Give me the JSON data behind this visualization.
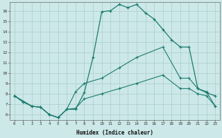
{
  "xlabel": "Humidex (Indice chaleur)",
  "background_color": "#cce8e8",
  "grid_color": "#aacccc",
  "line_color": "#1a7a6e",
  "xlim": [
    -0.5,
    23.5
  ],
  "ylim": [
    5.5,
    16.8
  ],
  "xticks": [
    0,
    1,
    2,
    3,
    4,
    5,
    6,
    7,
    8,
    9,
    10,
    11,
    12,
    13,
    14,
    15,
    16,
    17,
    18,
    19,
    20,
    21,
    22,
    23
  ],
  "yticks": [
    6,
    7,
    8,
    9,
    10,
    11,
    12,
    13,
    14,
    15,
    16
  ],
  "line1_x": [
    0,
    1,
    2,
    3,
    4,
    5,
    6,
    7,
    8,
    9,
    10,
    11,
    12,
    13,
    14,
    15,
    16,
    17,
    18,
    19,
    20,
    21,
    22,
    23
  ],
  "line1_y": [
    7.8,
    7.2,
    6.8,
    6.7,
    6.0,
    5.7,
    6.5,
    6.5,
    8.1,
    11.5,
    15.9,
    16.0,
    16.6,
    16.3,
    16.6,
    15.8,
    15.2,
    14.2,
    13.2,
    12.5,
    12.5,
    8.5,
    8.1,
    7.8
  ],
  "line2_x": [
    0,
    2,
    3,
    4,
    5,
    6,
    7,
    8,
    10,
    12,
    14,
    17,
    19,
    20,
    21,
    22,
    23
  ],
  "line2_y": [
    7.8,
    6.8,
    6.7,
    6.0,
    5.7,
    6.5,
    8.2,
    9.0,
    9.5,
    10.5,
    11.5,
    12.5,
    9.5,
    9.5,
    8.5,
    8.2,
    6.8
  ],
  "line3_x": [
    0,
    2,
    3,
    4,
    5,
    6,
    7,
    8,
    10,
    12,
    14,
    17,
    19,
    20,
    21,
    22,
    23
  ],
  "line3_y": [
    7.8,
    6.8,
    6.7,
    6.0,
    5.7,
    6.5,
    6.6,
    7.5,
    8.0,
    8.5,
    9.0,
    9.8,
    8.5,
    8.5,
    8.0,
    7.8,
    6.8
  ]
}
